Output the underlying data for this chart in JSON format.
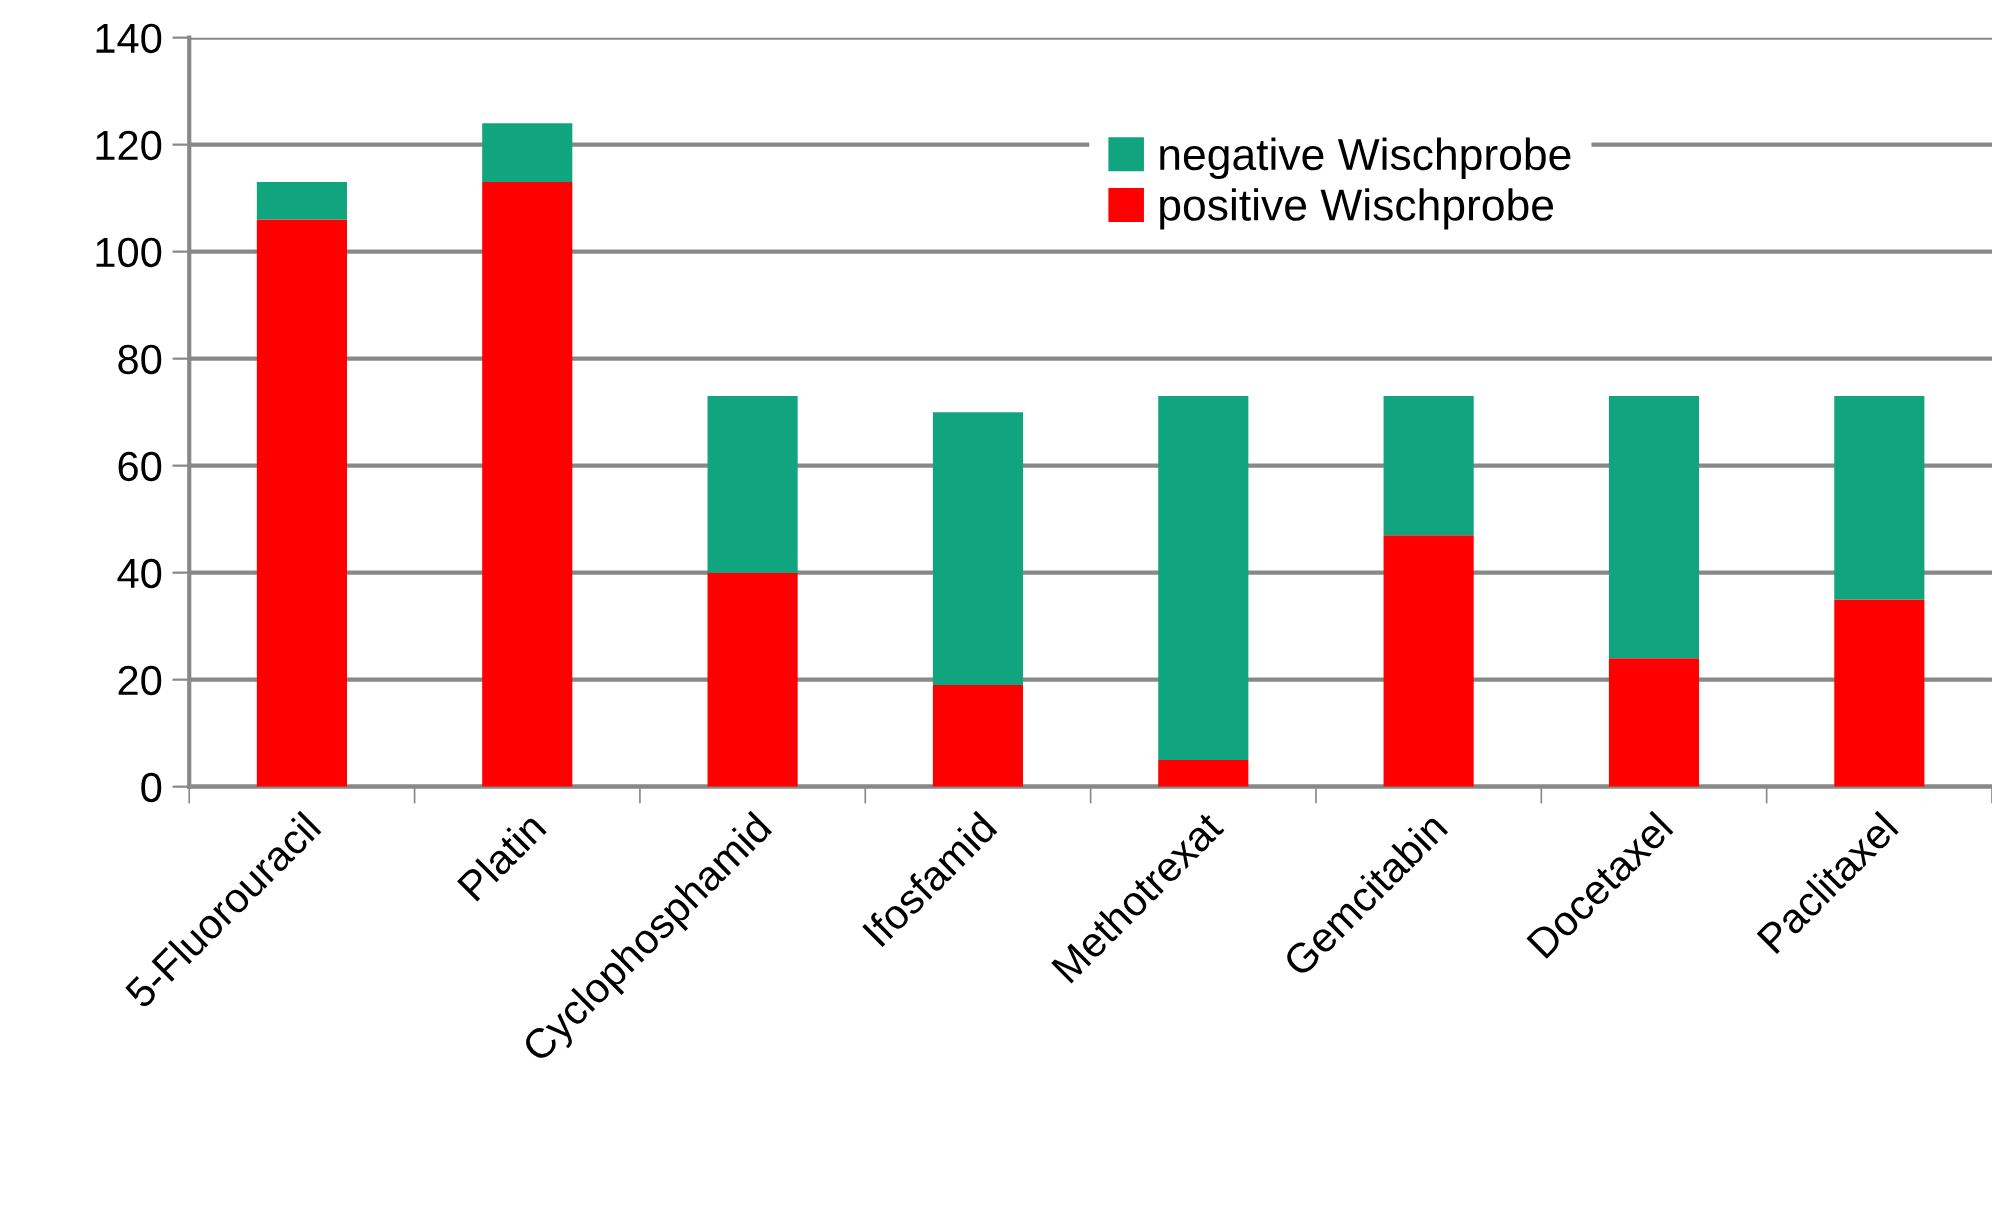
{
  "chart_data": {
    "type": "bar",
    "stacked": true,
    "categories": [
      "5-Fluorouracil",
      "Platin",
      "Cyclophosphamid",
      "Ifosfamid",
      "Methotrexat",
      "Gemcitabin",
      "Docetaxel",
      "Paclitaxel"
    ],
    "series": [
      {
        "name": "positive Wischprobe",
        "color": "#ff0000",
        "values": [
          106,
          113,
          40,
          19,
          5,
          47,
          24,
          35
        ]
      },
      {
        "name": "negative Wischprobe",
        "color": "#10a57e",
        "values": [
          7,
          11,
          33,
          51,
          68,
          26,
          49,
          38
        ]
      }
    ],
    "ylim": [
      0,
      140
    ],
    "yticks": [
      0,
      20,
      40,
      60,
      80,
      100,
      120,
      140
    ],
    "grid": "y",
    "legend": "top right"
  }
}
